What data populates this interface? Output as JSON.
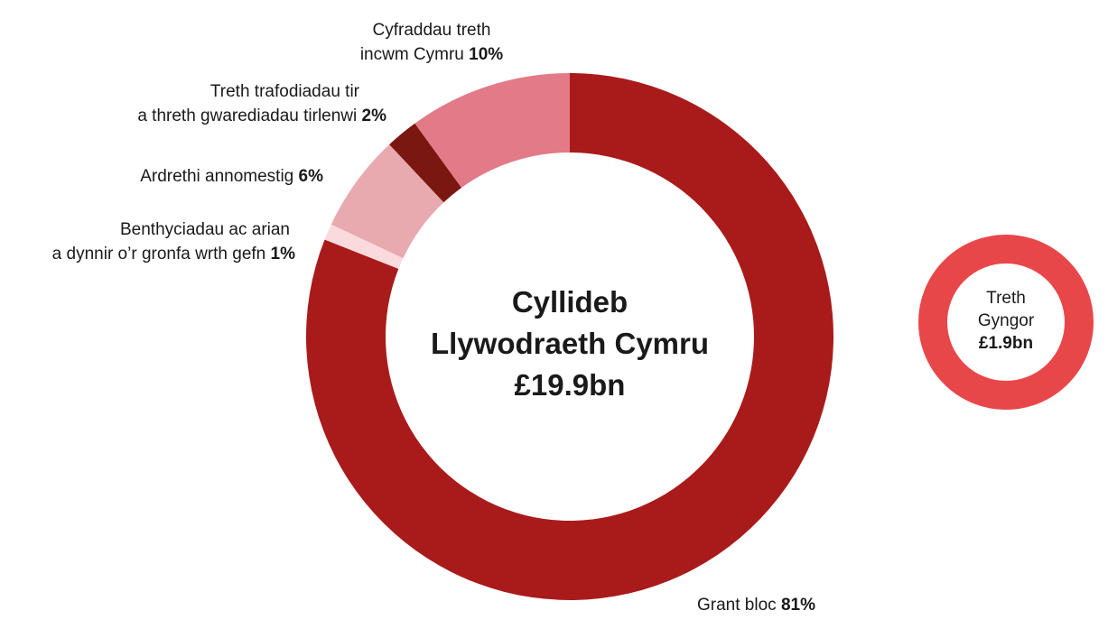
{
  "chart_data": [
    {
      "type": "pie",
      "title": "Cyllideb Llywodraeth Cymru",
      "total": "£19.9bn",
      "slices": [
        {
          "label": "Grant bloc",
          "value": 81,
          "color": "#A91B1A"
        },
        {
          "label": "Benthyciadau ac arian a dynnir o’r gronfa wrth gefn",
          "value": 1,
          "color": "#FADADD"
        },
        {
          "label": "Ardrethi annomestig",
          "value": 6,
          "color": "#E8A9AF"
        },
        {
          "label": "Treth trafodiadau tir a threth gwarediadau tirlenwi",
          "value": 2,
          "color": "#7A1710"
        },
        {
          "label": "Cyfraddau treth incwm Cymru",
          "value": 10,
          "color": "#E27A87"
        }
      ]
    },
    {
      "type": "pie",
      "title": "Treth Gyngor",
      "total": "£1.9bn",
      "slices": [
        {
          "label": "Treth Gyngor",
          "value": 100,
          "color": "#E8474A"
        }
      ]
    }
  ],
  "labels": {
    "grant": {
      "text": "Grant bloc",
      "pct": "81%"
    },
    "borrow": {
      "line1": "Benthyciadau ac arian",
      "line2": "a dynnir o’r gronfa wrth gefn",
      "pct": "1%"
    },
    "ndr": {
      "text": "Ardrethi annomestig",
      "pct": "6%"
    },
    "ltt": {
      "line1": "Treth trafodiadau tir",
      "line2": "a threth gwarediadau tirlenwi",
      "pct": "2%"
    },
    "income": {
      "line1": "Cyfraddau treth",
      "line2": "incwm Cymru",
      "pct": "10%"
    }
  },
  "center": {
    "line1": "Cyllideb",
    "line2": "Llywodraeth Cymru",
    "line3": "£19.9bn"
  },
  "council": {
    "line1": "Treth",
    "line2": "Gyngor",
    "value": "£1.9bn"
  }
}
